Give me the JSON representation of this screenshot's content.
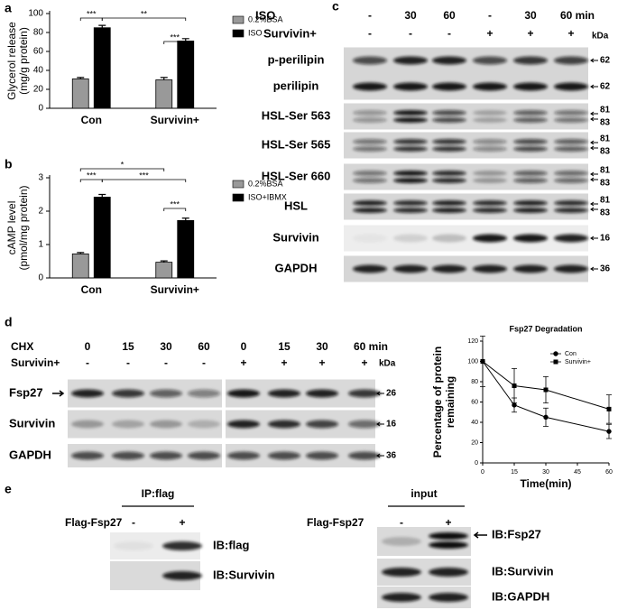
{
  "panel_labels": [
    "a",
    "b",
    "c",
    "d",
    "e"
  ],
  "chart_data": [
    {
      "type": "bar",
      "ylabel": [
        "Glycerol release",
        "(mg/g protein)"
      ],
      "categories": [
        "Con",
        "Survivin+"
      ],
      "series": [
        {
          "name": "0.2%BSA",
          "color": "#999999",
          "values": [
            31,
            30
          ],
          "errors": [
            1.5,
            2.5
          ]
        },
        {
          "name": "ISO",
          "color": "#000000",
          "values": [
            85,
            71
          ],
          "errors": [
            2.5,
            2.5
          ]
        }
      ],
      "ylim": [
        0,
        100
      ],
      "yticks": [
        0,
        20,
        40,
        60,
        80,
        100
      ],
      "annotations": [
        "***",
        "**",
        "***"
      ]
    },
    {
      "type": "bar",
      "ylabel": [
        "cAMP level",
        "(pmol/mg protein)"
      ],
      "categories": [
        "Con",
        "Survivin+"
      ],
      "series": [
        {
          "name": "0.2%BSA",
          "color": "#999999",
          "values": [
            0.72,
            0.47
          ],
          "errors": [
            0.04,
            0.04
          ]
        },
        {
          "name": "ISO+IBMX",
          "color": "#000000",
          "values": [
            2.42,
            1.72
          ],
          "errors": [
            0.08,
            0.07
          ]
        }
      ],
      "ylim": [
        0,
        3
      ],
      "yticks": [
        0,
        1,
        2,
        3
      ],
      "annotations": [
        "*",
        "***",
        "***",
        "***"
      ]
    },
    {
      "type": "line",
      "title": "Fsp27 Degradation",
      "xlabel": "Time(min)",
      "ylabel": [
        "Percentage of protein",
        "remaining"
      ],
      "x": [
        0,
        15,
        30,
        60
      ],
      "series": [
        {
          "name": "Con",
          "color": "#000000",
          "marker": "circle",
          "values": [
            100,
            57,
            45,
            31
          ],
          "errors": [
            null,
            7,
            9,
            7
          ]
        },
        {
          "name": "Survivin+",
          "color": "#000000",
          "marker": "square",
          "values": [
            100,
            76,
            72,
            53
          ],
          "errors": [
            25,
            17,
            13,
            14
          ]
        }
      ],
      "xlim": [
        0,
        60
      ],
      "xticks": [
        0,
        15,
        30,
        45,
        60
      ],
      "ylim": [
        0,
        120
      ],
      "yticks": [
        0,
        20,
        40,
        60,
        80,
        100,
        120
      ]
    }
  ],
  "blot_c": {
    "conditions": [
      {
        "label": "ISO",
        "lanes": [
          "-",
          "30",
          "60",
          "-",
          "30",
          "60 min"
        ]
      },
      {
        "label": "Survivin+",
        "lanes": [
          "-",
          "-",
          "-",
          "+",
          "+",
          "+"
        ]
      }
    ],
    "unit": "kDa",
    "rows": [
      {
        "label": "p-perilipin",
        "markers": [
          62
        ]
      },
      {
        "label": "perilipin",
        "markers": [
          62
        ]
      },
      {
        "label": "HSL-Ser 563",
        "markers": [
          81,
          83
        ]
      },
      {
        "label": "HSL-Ser 565",
        "markers": [
          81,
          83
        ]
      },
      {
        "label": "HSL-Ser 660",
        "markers": [
          81,
          83
        ]
      },
      {
        "label": "HSL",
        "markers": [
          81,
          83
        ]
      },
      {
        "label": "Survivin",
        "markers": [
          16
        ]
      },
      {
        "label": "GAPDH",
        "markers": [
          36
        ]
      }
    ]
  },
  "blot_d": {
    "conditions": [
      {
        "label": "CHX",
        "lanes": [
          "0",
          "15",
          "30",
          "60",
          "0",
          "15",
          "30",
          "60 min"
        ]
      },
      {
        "label": "Survivin+",
        "lanes": [
          "-",
          "-",
          "-",
          "-",
          "+",
          "+",
          "+",
          "+"
        ]
      }
    ],
    "unit": "kDa",
    "rows": [
      {
        "label": "Fsp27",
        "markers": [
          26
        ]
      },
      {
        "label": "Survivin",
        "markers": [
          16
        ]
      },
      {
        "label": "GAPDH",
        "markers": [
          36
        ]
      }
    ]
  },
  "blot_e": [
    {
      "title": "IP:flag",
      "condition": "Flag-Fsp27",
      "lanes": [
        "-",
        "+"
      ],
      "rows": [
        "IB:flag",
        "IB:Survivin"
      ]
    },
    {
      "title": "input",
      "condition": "Flag-Fsp27",
      "lanes": [
        "-",
        "+"
      ],
      "rows": [
        "IB:Fsp27",
        "IB:Survivin",
        "IB:GAPDH"
      ]
    }
  ]
}
